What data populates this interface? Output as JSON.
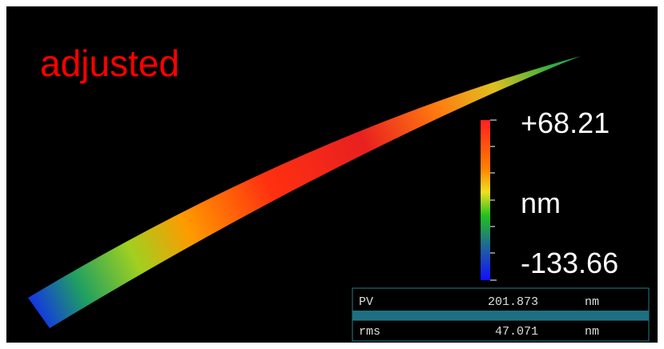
{
  "label": "adjusted",
  "colorbar": {
    "max": "+68.21",
    "unit": "nm",
    "min": "-133.66"
  },
  "table": {
    "rows": [
      [
        "PV",
        "201.873",
        "nm"
      ],
      [
        "rms",
        "47.071",
        "nm"
      ]
    ]
  }
}
